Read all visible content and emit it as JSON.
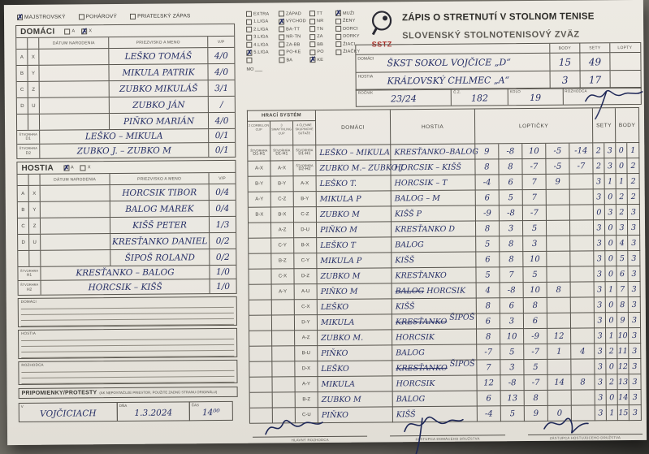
{
  "match_type": [
    {
      "label": "MAJSTROVSKÝ",
      "checked": true
    },
    {
      "label": "POHÁROVÝ",
      "checked": false
    },
    {
      "label": "PRIATEĽSKÝ ZÁPAS",
      "checked": false
    }
  ],
  "domaci_roster": {
    "title": "DOMÁCI",
    "a_label": "A",
    "x_label": "X",
    "a_checked": false,
    "x_checked": true,
    "headers": {
      "birth": "DÁTUM NARODENIA",
      "name": "PRIEZVISKO A MENO",
      "vp": "V/P"
    },
    "row_codes": [
      [
        "A",
        "X"
      ],
      [
        "B",
        "Y"
      ],
      [
        "C",
        "Z"
      ],
      [
        "D",
        "U"
      ],
      [
        "",
        ""
      ]
    ],
    "players": [
      {
        "name": "LEŠKO TOMÁŠ",
        "vp": "4/0"
      },
      {
        "name": "MIKULA PATRIK",
        "vp": "4/0"
      },
      {
        "name": "ZUBKO MIKULÁŠ",
        "vp": "3/1"
      },
      {
        "name": "ZUBKO JÁN",
        "vp": "/"
      },
      {
        "name": "PIŇKO MARIÁN",
        "vp": "4/0"
      }
    ],
    "doubles": [
      {
        "label": "ŠTVORHRA D1",
        "name": "LEŠKO – MIKULA",
        "vp": "0/1"
      },
      {
        "label": "ŠTVORHRA D2",
        "name": "ZUBKO J. – ZUBKO M",
        "vp": "0/1"
      }
    ]
  },
  "hostia_roster": {
    "title": "HOSTIA",
    "a_label": "A",
    "x_label": "X",
    "a_checked": true,
    "x_checked": false,
    "headers": {
      "birth": "DÁTUM NARODENIA",
      "name": "PRIEZVISKO A MENO",
      "vp": "V/P"
    },
    "row_codes": [
      [
        "A",
        "X"
      ],
      [
        "B",
        "Y"
      ],
      [
        "C",
        "Z"
      ],
      [
        "D",
        "U"
      ],
      [
        "",
        ""
      ]
    ],
    "players": [
      {
        "name": "HORCSIK TIBOR",
        "vp": "0/4"
      },
      {
        "name": "BALOG MAREK",
        "vp": "0/4"
      },
      {
        "name": "KIŠŠ PETER",
        "vp": "1/3"
      },
      {
        "name": "KRESŤANKO DANIEL",
        "vp": "0/2"
      },
      {
        "name": "ŠIPOŠ ROLAND",
        "vp": "0/2"
      }
    ],
    "doubles": [
      {
        "label": "ŠTVORHRA H1",
        "name": "KRESŤANKO – BALOG",
        "vp": "1/0"
      },
      {
        "label": "ŠTVORHRA H2",
        "name": "HORCSIK – KIŠŠ",
        "vp": "1/0"
      }
    ]
  },
  "note_boxes": [
    {
      "label": "DOMÁCI",
      "lines": 4
    },
    {
      "label": "HOSTIA",
      "lines": 4
    },
    {
      "label": "ROZHODCA",
      "lines": 3
    }
  ],
  "remarks": {
    "label": "PRIPOMIENKY/PROTESTY",
    "note": "(AK NEPOSTAČUJE PRIESTOR, POUŽITE ZADNÚ STRANU ORIGINÁLU)"
  },
  "footer": {
    "v_label": "V",
    "v_value": "VOJČICIACH",
    "date_label": "DŇA",
    "date_value": "1.3.2024",
    "time_label": "ČAS",
    "time_value": "14⁰⁰"
  },
  "league": {
    "col1": [
      {
        "label": "EXTRA",
        "checked": false
      },
      {
        "label": "1.LIGA",
        "checked": false
      },
      {
        "label": "2.LIGA",
        "checked": false
      },
      {
        "label": "3.LIGA",
        "checked": false
      },
      {
        "label": "4.LIGA",
        "checked": false
      },
      {
        "label": "5.LIGA",
        "checked": true
      },
      {
        "label": "",
        "checked": false
      }
    ],
    "mo_label": "MO ___",
    "col2": [
      {
        "label": "ZÁPAD",
        "checked": false
      },
      {
        "label": "VÝCHOD",
        "checked": true
      },
      {
        "label": "BA-TT",
        "checked": false
      },
      {
        "label": "NR-TN",
        "checked": false
      },
      {
        "label": "ZA-BB",
        "checked": false
      },
      {
        "label": "PO-KE",
        "checked": false
      },
      {
        "label": "BA",
        "checked": false
      }
    ],
    "col3": [
      {
        "label": "TT",
        "checked": false
      },
      {
        "label": "NR",
        "checked": false
      },
      {
        "label": "TN",
        "checked": false
      },
      {
        "label": "ZA",
        "checked": false
      },
      {
        "label": "BB",
        "checked": false
      },
      {
        "label": "PO",
        "checked": false
      },
      {
        "label": "KE",
        "checked": true
      }
    ],
    "col4": [
      {
        "label": "MUŽI",
        "checked": true
      },
      {
        "label": "ŽENY",
        "checked": false
      },
      {
        "label": "DORCI",
        "checked": false
      },
      {
        "label": "DORKY",
        "checked": false
      },
      {
        "label": "ŽIACI",
        "checked": false
      },
      {
        "label": "ŽIAČKY",
        "checked": false
      }
    ]
  },
  "header": {
    "logo_text": "SSTZ",
    "title": "ZÁPIS O STRETNUTÍ V STOLNOM TENISE",
    "subtitle": "SLOVENSKÝ STOLNOTENISOVÝ ZVÄZ"
  },
  "teams": {
    "col_headers": [
      "BODY",
      "SETY",
      "LOPTY"
    ],
    "rows": [
      {
        "label": "DOMÁCI",
        "name": "ŠKST SOKOL VOJČICE „D“",
        "body": "15",
        "sety": "49",
        "lopty": ""
      },
      {
        "label": "HOSTIA",
        "name": "KRÁĽOVSKÝ CHLMEC „A“",
        "body": "3",
        "sety": "17",
        "lopty": ""
      }
    ]
  },
  "round": {
    "rocnik_label": "ROČNÍK",
    "rocnik": "23/24",
    "cz_label": "Č.Z.",
    "cz": "182",
    "kolo_label": "KOLO",
    "kolo": "19",
    "rozhodca_label": "ROZHODCA"
  },
  "match": {
    "system_title": "HRACÍ SYSTÉM",
    "system_cols": [
      "2 CORBILLON CUP",
      "3 SWAYTHLING CUP",
      "4 ČLENNÉ SKUPINOVÉ SÚŤAŽE"
    ],
    "headers": {
      "domaci": "DOMÁCI",
      "hostia": "HOSTIA",
      "lopticky": "LOPTIČKY",
      "sety": "SETY",
      "body": "BODY"
    },
    "rows": [
      {
        "codes": [
          "ŠTVORHRA|D1-H1",
          "ŠTVORHRA|D1-H1",
          "ŠTVORHRA|D1-H1"
        ],
        "domaci": "LEŠKO – MIKULA",
        "hostia": "KRESŤANKO–BALOG",
        "balls": [
          "9",
          "-8",
          "10",
          "-5",
          "-14"
        ],
        "sety": [
          "2",
          "3"
        ],
        "body": [
          "0",
          "1"
        ]
      },
      {
        "codes": [
          "A-X",
          "A-X",
          "ŠTVORHRA|D2-H2"
        ],
        "domaci": "ZUBKO M.– ZUBKO J.",
        "hostia": "HORCSIK – KIŠŠ",
        "balls": [
          "8",
          "8",
          "-7",
          "-5",
          "-7"
        ],
        "sety": [
          "2",
          "3"
        ],
        "body": [
          "0",
          "2"
        ]
      },
      {
        "codes": [
          "B-Y",
          "B-Y",
          "A-X"
        ],
        "domaci": "LEŠKO T.",
        "hostia": "HORCSIK – T",
        "balls": [
          "-4",
          "6",
          "7",
          "9",
          ""
        ],
        "sety": [
          "3",
          "1"
        ],
        "body": [
          "1",
          "2"
        ]
      },
      {
        "codes": [
          "A-Y",
          "C-Z",
          "B-Y"
        ],
        "domaci": "MIKULA P",
        "hostia": "BALOG – M",
        "balls": [
          "6",
          "5",
          "7",
          "",
          ""
        ],
        "sety": [
          "3",
          "0"
        ],
        "body": [
          "2",
          "2"
        ]
      },
      {
        "codes": [
          "B-X",
          "B-X",
          "C-Z"
        ],
        "domaci": "ZUBKO M",
        "hostia": "KIŠŠ P",
        "balls": [
          "-9",
          "-8",
          "-7",
          "",
          ""
        ],
        "sety": [
          "0",
          "3"
        ],
        "body": [
          "2",
          "3"
        ]
      },
      {
        "codes": [
          "",
          "A-Z",
          "D-U"
        ],
        "domaci": "PIŇKO M",
        "hostia": "KRESŤANKO D",
        "balls": [
          "8",
          "3",
          "5",
          "",
          ""
        ],
        "sety": [
          "3",
          "0"
        ],
        "body": [
          "3",
          "3"
        ]
      },
      {
        "codes": [
          "",
          "C-Y",
          "B-X"
        ],
        "domaci": "LEŠKO T",
        "hostia": "BALOG",
        "balls": [
          "5",
          "8",
          "3",
          "",
          ""
        ],
        "sety": [
          "3",
          "0"
        ],
        "body": [
          "4",
          "3"
        ]
      },
      {
        "codes": [
          "",
          "B-Z",
          "C-Y"
        ],
        "domaci": "MIKULA P",
        "hostia": "KIŠŠ",
        "balls": [
          "6",
          "8",
          "10",
          "",
          ""
        ],
        "sety": [
          "3",
          "0"
        ],
        "body": [
          "5",
          "3"
        ]
      },
      {
        "codes": [
          "",
          "C-X",
          "D-Z"
        ],
        "domaci": "ZUBKO M",
        "hostia": "KRESŤANKO",
        "balls": [
          "5",
          "7",
          "5",
          "",
          ""
        ],
        "sety": [
          "3",
          "0"
        ],
        "body": [
          "6",
          "3"
        ]
      },
      {
        "codes": [
          "",
          "A-Y",
          "A-U"
        ],
        "domaci": "PIŇKO M",
        "hostia_struck": "BALOG",
        "hostia": "HORCSIK",
        "balls": [
          "4",
          "-8",
          "10",
          "8",
          ""
        ],
        "sety": [
          "3",
          "1"
        ],
        "body": [
          "7",
          "3"
        ]
      },
      {
        "codes": [
          "",
          "",
          "C-X"
        ],
        "domaci": "LEŠKO",
        "hostia": "KIŠŠ",
        "balls": [
          "8",
          "6",
          "8",
          "",
          ""
        ],
        "sety": [
          "3",
          "0"
        ],
        "body": [
          "8",
          "3"
        ]
      },
      {
        "codes": [
          "",
          "",
          "D-Y"
        ],
        "domaci": "MIKULA",
        "hostia_struck": "KRESŤANKO",
        "hostia": "ŠIPOŠ",
        "hostia_above": true,
        "balls": [
          "6",
          "3",
          "6",
          "",
          ""
        ],
        "sety": [
          "3",
          "0"
        ],
        "body": [
          "9",
          "3"
        ]
      },
      {
        "codes": [
          "",
          "",
          "A-Z"
        ],
        "domaci": "ZUBKO M.",
        "hostia": "HORCSIK",
        "balls": [
          "8",
          "10",
          "-9",
          "12",
          ""
        ],
        "sety": [
          "3",
          "1"
        ],
        "body": [
          "10",
          "3"
        ]
      },
      {
        "codes": [
          "",
          "",
          "B-U"
        ],
        "domaci": "PIŇKO",
        "hostia": "BALOG",
        "balls": [
          "-7",
          "5",
          "-7",
          "1",
          "4"
        ],
        "sety": [
          "3",
          "2"
        ],
        "body": [
          "11",
          "3"
        ]
      },
      {
        "codes": [
          "",
          "",
          "D-X"
        ],
        "domaci": "LEŠKO",
        "hostia_struck": "KRESŤANKO",
        "hostia": "ŠIPOŠ",
        "hostia_above": true,
        "balls": [
          "7",
          "3",
          "5",
          "",
          ""
        ],
        "sety": [
          "3",
          "0"
        ],
        "body": [
          "12",
          "3"
        ]
      },
      {
        "codes": [
          "",
          "",
          "A-Y"
        ],
        "domaci": "MIKULA",
        "hostia": "HORCSIK",
        "balls": [
          "12",
          "-8",
          "-7",
          "14",
          "8"
        ],
        "sety": [
          "3",
          "2"
        ],
        "body": [
          "13",
          "3"
        ]
      },
      {
        "codes": [
          "",
          "",
          "B-Z"
        ],
        "domaci": "ZUBKO M",
        "hostia": "BALOG",
        "balls": [
          "6",
          "13",
          "8",
          "",
          ""
        ],
        "sety": [
          "3",
          "0"
        ],
        "body": [
          "14",
          "3"
        ]
      },
      {
        "codes": [
          "",
          "",
          "C-U"
        ],
        "domaci": "PIŇKO",
        "hostia": "KIŠŠ",
        "balls": [
          "-4",
          "5",
          "9",
          "0",
          ""
        ],
        "sety": [
          "3",
          "1"
        ],
        "body": [
          "15",
          "3"
        ]
      }
    ]
  },
  "signatures": [
    "HLAVNÝ ROZHODCA",
    "ZÁSTUPCA DOMÁCEHO DRUŽSTVA",
    "ZÁSTUPCA HOSTUJÚCEHO DRUŽSTVA"
  ]
}
